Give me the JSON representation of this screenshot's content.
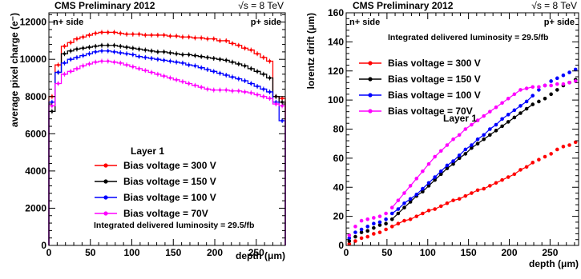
{
  "header": {
    "left_title": "CMS Preliminary 2012",
    "right_title": "√s = 8 TeV"
  },
  "left_panel": {
    "n_side": "n+ side",
    "p_side": "p+ side",
    "layer": "Layer 1",
    "luminosity": "Integrated delivered luminosity = 29.5/fb"
  },
  "right_panel": {
    "n_side": "n+ side",
    "p_side": "p+ side",
    "layer": "Layer 1",
    "luminosity": "Integrated delivered luminosity = 29.5/fb"
  },
  "colors": {
    "300V": "#ff0000",
    "150V": "#000000",
    "100V": "#0000ff",
    "70V": "#ff00ff"
  },
  "chart_data": [
    {
      "type": "line",
      "subtype": "step-histogram",
      "xlabel": "depth (μm)",
      "ylabel": "average pixel charge (e⁻)",
      "xlim": [
        0,
        285
      ],
      "ylim": [
        0,
        12500
      ],
      "xticks": [
        0,
        50,
        100,
        150,
        200,
        250
      ],
      "yticks": [
        0,
        2000,
        4000,
        6000,
        8000,
        10000,
        12000
      ],
      "grid": false,
      "legend_position": "bottom-center",
      "x": [
        3.75,
        11.25,
        18.75,
        26.25,
        33.75,
        41.25,
        48.75,
        56.25,
        63.75,
        71.25,
        78.75,
        86.25,
        93.75,
        101.25,
        108.75,
        116.25,
        123.75,
        131.25,
        138.75,
        146.25,
        153.75,
        161.25,
        168.75,
        176.25,
        183.75,
        191.25,
        198.75,
        206.25,
        213.75,
        221.25,
        228.75,
        236.25,
        243.75,
        251.25,
        258.75,
        266.25,
        273.75,
        281.25
      ],
      "series": [
        {
          "name": "Bias voltage = 300 V",
          "color": "#ff0000",
          "values": [
            8000,
            9700,
            10700,
            10900,
            11100,
            11200,
            11300,
            11400,
            11450,
            11450,
            11450,
            11400,
            11350,
            11350,
            11350,
            11300,
            11300,
            11300,
            11300,
            11250,
            11250,
            11200,
            11200,
            11150,
            11150,
            11100,
            11100,
            11000,
            11000,
            10850,
            10750,
            10600,
            10500,
            10300,
            10100,
            9900,
            8000,
            7900
          ]
        },
        {
          "name": "Bias voltage = 150 V",
          "color": "#000000",
          "values": [
            7200,
            9300,
            10300,
            10450,
            10550,
            10600,
            10650,
            10700,
            10750,
            10750,
            10750,
            10700,
            10650,
            10600,
            10550,
            10500,
            10450,
            10400,
            10400,
            10350,
            10300,
            10250,
            10250,
            10200,
            10150,
            10100,
            10050,
            10000,
            9950,
            9850,
            9750,
            9650,
            9500,
            9350,
            9200,
            9000,
            8000,
            7700
          ]
        },
        {
          "name": "Bias voltage = 100 V",
          "color": "#0000ff",
          "values": [
            7700,
            9300,
            9800,
            10000,
            10100,
            10200,
            10300,
            10400,
            10450,
            10450,
            10400,
            10350,
            10300,
            10250,
            10150,
            10100,
            10050,
            10000,
            9950,
            9900,
            9850,
            9800,
            9700,
            9650,
            9550,
            9450,
            9350,
            9250,
            9150,
            9050,
            8950,
            8850,
            8700,
            8550,
            8400,
            8250,
            7700,
            6700
          ]
        },
        {
          "name": "Bias voltage = 70V",
          "color": "#ff00ff",
          "values": [
            7500,
            8700,
            9200,
            9350,
            9500,
            9650,
            9750,
            9850,
            9900,
            9900,
            9850,
            9800,
            9700,
            9600,
            9500,
            9400,
            9300,
            9200,
            9100,
            9000,
            8900,
            8800,
            8700,
            8600,
            8500,
            8400,
            8350,
            8350,
            8350,
            8300,
            8300,
            8250,
            8200,
            8100,
            8000,
            7900,
            7600,
            7500
          ]
        }
      ]
    },
    {
      "type": "scatter",
      "xlabel": "depth (μm)",
      "ylabel": "lorentz drift (μm)",
      "xlim": [
        0,
        285
      ],
      "ylim": [
        0,
        160
      ],
      "xticks": [
        0,
        50,
        100,
        150,
        200,
        250
      ],
      "yticks": [
        0,
        20,
        40,
        60,
        80,
        100,
        120,
        140,
        160
      ],
      "grid": false,
      "legend_position": "top-left",
      "series": [
        {
          "name": "Bias voltage = 300 V",
          "color": "#ff0000",
          "x": [
            3.75,
            11.25,
            18.75,
            26.25,
            33.75,
            41.25,
            48.75,
            56.25,
            63.75,
            71.25,
            78.75,
            86.25,
            93.75,
            101.25,
            108.75,
            116.25,
            123.75,
            131.25,
            138.75,
            146.25,
            153.75,
            161.25,
            168.75,
            176.25,
            183.75,
            191.25,
            198.75,
            206.25,
            213.75,
            221.25,
            228.75,
            236.25,
            243.75,
            251.25,
            258.75,
            266.25,
            273.75,
            281.25
          ],
          "y": [
            1,
            3,
            5,
            6,
            8,
            9,
            11,
            13,
            15,
            17,
            18,
            20,
            22,
            24,
            25,
            27,
            29,
            31,
            32,
            34,
            36,
            38,
            39,
            41,
            43,
            45,
            47,
            49,
            52,
            54,
            57,
            59,
            61,
            63,
            66,
            68,
            69,
            71
          ]
        },
        {
          "name": "Bias voltage = 150 V",
          "color": "#000000",
          "x": [
            3.75,
            11.25,
            18.75,
            26.25,
            33.75,
            41.25,
            48.75,
            56.25,
            63.75,
            71.25,
            78.75,
            86.25,
            93.75,
            101.25,
            108.75,
            116.25,
            123.75,
            131.25,
            138.75,
            146.25,
            153.75,
            161.25,
            168.75,
            176.25,
            183.75,
            191.25,
            198.75,
            206.25,
            213.75,
            221.25,
            228.75,
            236.25,
            243.75,
            251.25,
            258.75,
            266.25,
            273.75,
            281.25
          ],
          "y": [
            3,
            6,
            9,
            10,
            12,
            14,
            15,
            18,
            22,
            26,
            30,
            34,
            37,
            41,
            45,
            49,
            53,
            56,
            60,
            63,
            67,
            70,
            73,
            76,
            79,
            82,
            85,
            88,
            91,
            94,
            97,
            99,
            101,
            104,
            107,
            110,
            112,
            114
          ]
        },
        {
          "name": "Bias voltage = 100 V",
          "color": "#0000ff",
          "x": [
            3.75,
            11.25,
            18.75,
            26.25,
            33.75,
            41.25,
            48.75,
            56.25,
            63.75,
            71.25,
            78.75,
            86.25,
            93.75,
            101.25,
            108.75,
            116.25,
            123.75,
            131.25,
            138.75,
            146.25,
            153.75,
            161.25,
            168.75,
            176.25,
            183.75,
            191.25,
            198.75,
            206.25,
            213.75,
            221.25,
            228.75,
            236.25,
            243.75,
            251.25,
            258.75,
            266.25,
            273.75,
            281.25
          ],
          "y": [
            5,
            9,
            11,
            13,
            15,
            16,
            18,
            22,
            25,
            29,
            32,
            35,
            39,
            43,
            47,
            51,
            55,
            58,
            62,
            66,
            69,
            73,
            76,
            80,
            83,
            87,
            90,
            93,
            96,
            99,
            103,
            107,
            110,
            113,
            115,
            117,
            119,
            121
          ]
        },
        {
          "name": "Bias voltage = 70V",
          "color": "#ff00ff",
          "x": [
            3.75,
            11.25,
            18.75,
            26.25,
            33.75,
            41.25,
            48.75,
            56.25,
            63.75,
            71.25,
            78.75,
            86.25,
            93.75,
            101.25,
            108.75,
            116.25,
            123.75,
            131.25,
            138.75,
            146.25,
            153.75,
            161.25,
            168.75,
            176.25,
            183.75,
            191.25,
            198.75,
            206.25,
            213.75,
            221.25,
            228.75,
            236.25,
            243.75,
            251.25,
            258.75,
            266.25,
            273.75,
            281.25
          ],
          "y": [
            7,
            13,
            17,
            18,
            19,
            20,
            22,
            26,
            31,
            36,
            41,
            46,
            51,
            56,
            61,
            65,
            69,
            73,
            76,
            80,
            83,
            86,
            89,
            92,
            95,
            98,
            101,
            104,
            107,
            108,
            109,
            109,
            110,
            110,
            111,
            111,
            112,
            113
          ]
        }
      ]
    }
  ]
}
